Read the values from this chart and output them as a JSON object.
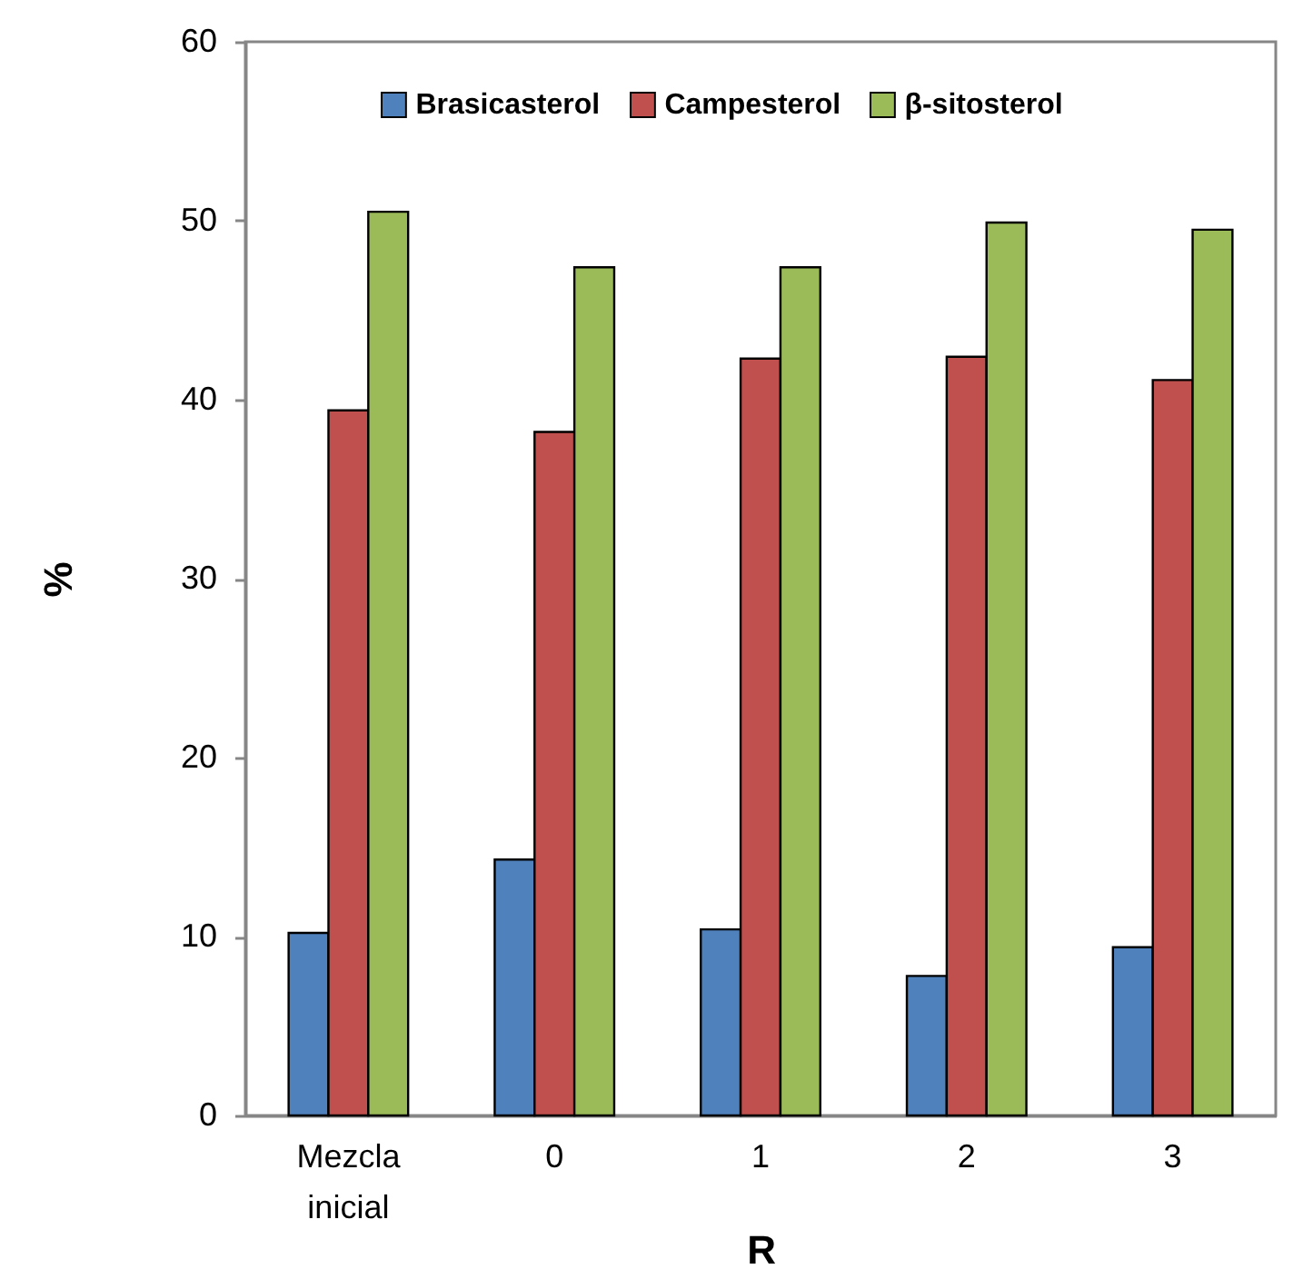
{
  "chart_data": {
    "type": "bar",
    "xlabel": "R",
    "ylabel": "%",
    "categories": [
      "Mezcla inicial",
      "0",
      "1",
      "2",
      "3"
    ],
    "series": [
      {
        "name": "Brasicasterol",
        "color": "#4f81bd",
        "values": [
          10.2,
          14.3,
          10.4,
          7.8,
          9.4
        ]
      },
      {
        "name": "Campesterol",
        "color": "#c0504d",
        "values": [
          39.4,
          38.2,
          42.3,
          42.4,
          41.1
        ]
      },
      {
        "name": "β-sitosterol",
        "color": "#9bbb59",
        "values": [
          50.5,
          47.4,
          47.4,
          49.9,
          49.5
        ]
      }
    ],
    "ylim": [
      0,
      60
    ],
    "yticks": [
      0,
      10,
      20,
      30,
      40,
      50,
      60
    ],
    "grid": false,
    "legend": "top"
  }
}
